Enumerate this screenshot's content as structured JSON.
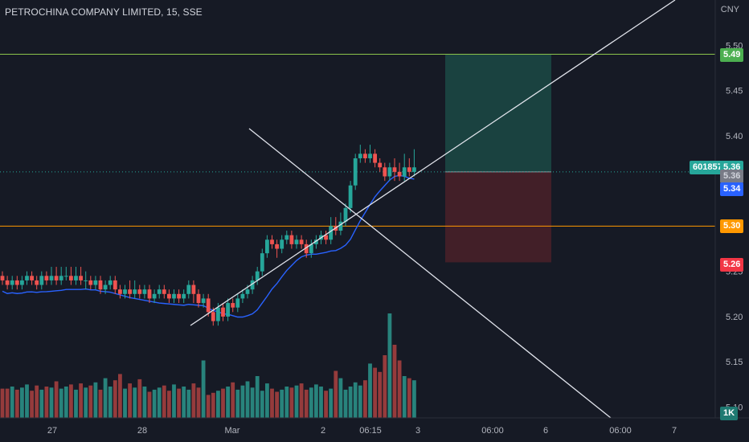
{
  "header": {
    "title": "PETROCHINA COMPANY LIMITED, 15, SSE",
    "currency": "CNY"
  },
  "price_tags": {
    "target": "5.49",
    "ticker": "601857",
    "last": "5.36",
    "close_grey": "5.36",
    "ma": "5.34",
    "level": "5.30",
    "stop": "5.26",
    "volume": "1K"
  },
  "colors": {
    "bg": "#161a25",
    "up": "#26a69a",
    "down": "#ef5350",
    "up_vol": "#2a8f86",
    "down_vol": "#a33f3f",
    "ma": "#2962ff",
    "green_line": "#8bc34a",
    "orange_line": "#ff9800",
    "profit_zone": "#1b4a45",
    "loss_zone": "#4a2129"
  },
  "chart_data": {
    "type": "candlestick",
    "symbol": "PETROCHINA COMPANY LIMITED",
    "interval": "15",
    "exchange": "SSE",
    "y_ticks": [
      "5.10",
      "5.15",
      "5.20",
      "5.25",
      "5.30",
      "5.35",
      "5.40",
      "5.45",
      "5.50"
    ],
    "y_range": [
      5.088,
      5.55
    ],
    "x_ticks": [
      "27",
      "28",
      "Mar",
      "2",
      "06:15",
      "3",
      "06:00",
      "6",
      "06:00",
      "7"
    ],
    "horizontal_levels": [
      5.49,
      5.3
    ],
    "position": {
      "entry": 5.36,
      "target": 5.49,
      "stop": 5.26
    },
    "candles": [
      [
        5.245,
        5.24,
        5.25,
        5.235
      ],
      [
        5.24,
        5.235,
        5.245,
        5.23
      ],
      [
        5.235,
        5.24,
        5.245,
        5.23
      ],
      [
        5.24,
        5.235,
        5.245,
        5.23
      ],
      [
        5.235,
        5.24,
        5.245,
        5.23
      ],
      [
        5.24,
        5.245,
        5.25,
        5.235
      ],
      [
        5.245,
        5.24,
        5.25,
        5.235
      ],
      [
        5.24,
        5.235,
        5.245,
        5.23
      ],
      [
        5.235,
        5.245,
        5.25,
        5.23
      ],
      [
        5.245,
        5.24,
        5.25,
        5.235
      ],
      [
        5.24,
        5.245,
        5.255,
        5.235
      ],
      [
        5.245,
        5.24,
        5.255,
        5.235
      ],
      [
        5.24,
        5.245,
        5.255,
        5.235
      ],
      [
        5.245,
        5.245,
        5.255,
        5.24
      ],
      [
        5.245,
        5.24,
        5.255,
        5.235
      ],
      [
        5.24,
        5.245,
        5.255,
        5.235
      ],
      [
        5.245,
        5.24,
        5.255,
        5.235
      ],
      [
        5.24,
        5.24,
        5.25,
        5.23
      ],
      [
        5.24,
        5.235,
        5.245,
        5.23
      ],
      [
        5.235,
        5.24,
        5.245,
        5.23
      ],
      [
        5.24,
        5.23,
        5.245,
        5.225
      ],
      [
        5.23,
        5.235,
        5.24,
        5.225
      ],
      [
        5.235,
        5.24,
        5.245,
        5.23
      ],
      [
        5.24,
        5.23,
        5.245,
        5.225
      ],
      [
        5.23,
        5.225,
        5.235,
        5.22
      ],
      [
        5.225,
        5.23,
        5.235,
        5.22
      ],
      [
        5.23,
        5.225,
        5.24,
        5.22
      ],
      [
        5.225,
        5.23,
        5.24,
        5.22
      ],
      [
        5.23,
        5.225,
        5.235,
        5.22
      ],
      [
        5.225,
        5.23,
        5.235,
        5.22
      ],
      [
        5.23,
        5.22,
        5.235,
        5.215
      ],
      [
        5.22,
        5.225,
        5.23,
        5.215
      ],
      [
        5.225,
        5.23,
        5.235,
        5.22
      ],
      [
        5.23,
        5.225,
        5.235,
        5.22
      ],
      [
        5.225,
        5.22,
        5.23,
        5.215
      ],
      [
        5.22,
        5.225,
        5.23,
        5.215
      ],
      [
        5.225,
        5.22,
        5.23,
        5.215
      ],
      [
        5.22,
        5.225,
        5.23,
        5.215
      ],
      [
        5.225,
        5.235,
        5.24,
        5.22
      ],
      [
        5.235,
        5.225,
        5.24,
        5.215
      ],
      [
        5.225,
        5.215,
        5.23,
        5.21
      ],
      [
        5.215,
        5.22,
        5.225,
        5.21
      ],
      [
        5.22,
        5.205,
        5.225,
        5.2
      ],
      [
        5.205,
        5.195,
        5.21,
        5.19
      ],
      [
        5.195,
        5.21,
        5.215,
        5.19
      ],
      [
        5.21,
        5.2,
        5.215,
        5.195
      ],
      [
        5.2,
        5.215,
        5.22,
        5.195
      ],
      [
        5.215,
        5.21,
        5.22,
        5.205
      ],
      [
        5.21,
        5.22,
        5.225,
        5.205
      ],
      [
        5.22,
        5.225,
        5.23,
        5.215
      ],
      [
        5.225,
        5.23,
        5.235,
        5.22
      ],
      [
        5.23,
        5.24,
        5.245,
        5.225
      ],
      [
        5.24,
        5.25,
        5.255,
        5.235
      ],
      [
        5.25,
        5.27,
        5.275,
        5.245
      ],
      [
        5.27,
        5.285,
        5.29,
        5.265
      ],
      [
        5.285,
        5.28,
        5.29,
        5.275
      ],
      [
        5.28,
        5.275,
        5.285,
        5.265
      ],
      [
        5.275,
        5.285,
        5.29,
        5.27
      ],
      [
        5.285,
        5.29,
        5.295,
        5.28
      ],
      [
        5.29,
        5.28,
        5.295,
        5.275
      ],
      [
        5.28,
        5.285,
        5.29,
        5.275
      ],
      [
        5.285,
        5.28,
        5.29,
        5.275
      ],
      [
        5.28,
        5.27,
        5.285,
        5.265
      ],
      [
        5.27,
        5.28,
        5.285,
        5.265
      ],
      [
        5.28,
        5.285,
        5.29,
        5.275
      ],
      [
        5.285,
        5.29,
        5.295,
        5.28
      ],
      [
        5.29,
        5.285,
        5.295,
        5.28
      ],
      [
        5.285,
        5.3,
        5.31,
        5.28
      ],
      [
        5.3,
        5.295,
        5.31,
        5.29
      ],
      [
        5.295,
        5.305,
        5.315,
        5.29
      ],
      [
        5.305,
        5.32,
        5.325,
        5.3
      ],
      [
        5.32,
        5.345,
        5.35,
        5.315
      ],
      [
        5.345,
        5.375,
        5.38,
        5.34
      ],
      [
        5.375,
        5.38,
        5.39,
        5.37
      ],
      [
        5.38,
        5.375,
        5.385,
        5.37
      ],
      [
        5.375,
        5.38,
        5.39,
        5.37
      ],
      [
        5.38,
        5.37,
        5.385,
        5.365
      ],
      [
        5.37,
        5.365,
        5.375,
        5.36
      ],
      [
        5.365,
        5.355,
        5.37,
        5.35
      ],
      [
        5.355,
        5.365,
        5.37,
        5.35
      ],
      [
        5.365,
        5.36,
        5.375,
        5.35
      ],
      [
        5.36,
        5.355,
        5.37,
        5.35
      ],
      [
        5.355,
        5.365,
        5.38,
        5.35
      ],
      [
        5.365,
        5.36,
        5.375,
        5.355
      ],
      [
        5.36,
        5.365,
        5.385,
        5.355
      ]
    ],
    "volumes": [
      28,
      28,
      30,
      27,
      29,
      32,
      26,
      31,
      27,
      30,
      29,
      35,
      28,
      30,
      32,
      27,
      33,
      29,
      31,
      34,
      27,
      38,
      30,
      36,
      42,
      28,
      33,
      29,
      37,
      30,
      25,
      27,
      29,
      31,
      26,
      32,
      28,
      30,
      27,
      33,
      29,
      55,
      22,
      24,
      26,
      28,
      30,
      34,
      27,
      31,
      35,
      29,
      40,
      26,
      33,
      28,
      25,
      27,
      30,
      29,
      31,
      33,
      27,
      29,
      32,
      30,
      26,
      28,
      45,
      38,
      27,
      30,
      34,
      31,
      36,
      52,
      48,
      44,
      60,
      100,
      70,
      55,
      40,
      38,
      36
    ]
  }
}
